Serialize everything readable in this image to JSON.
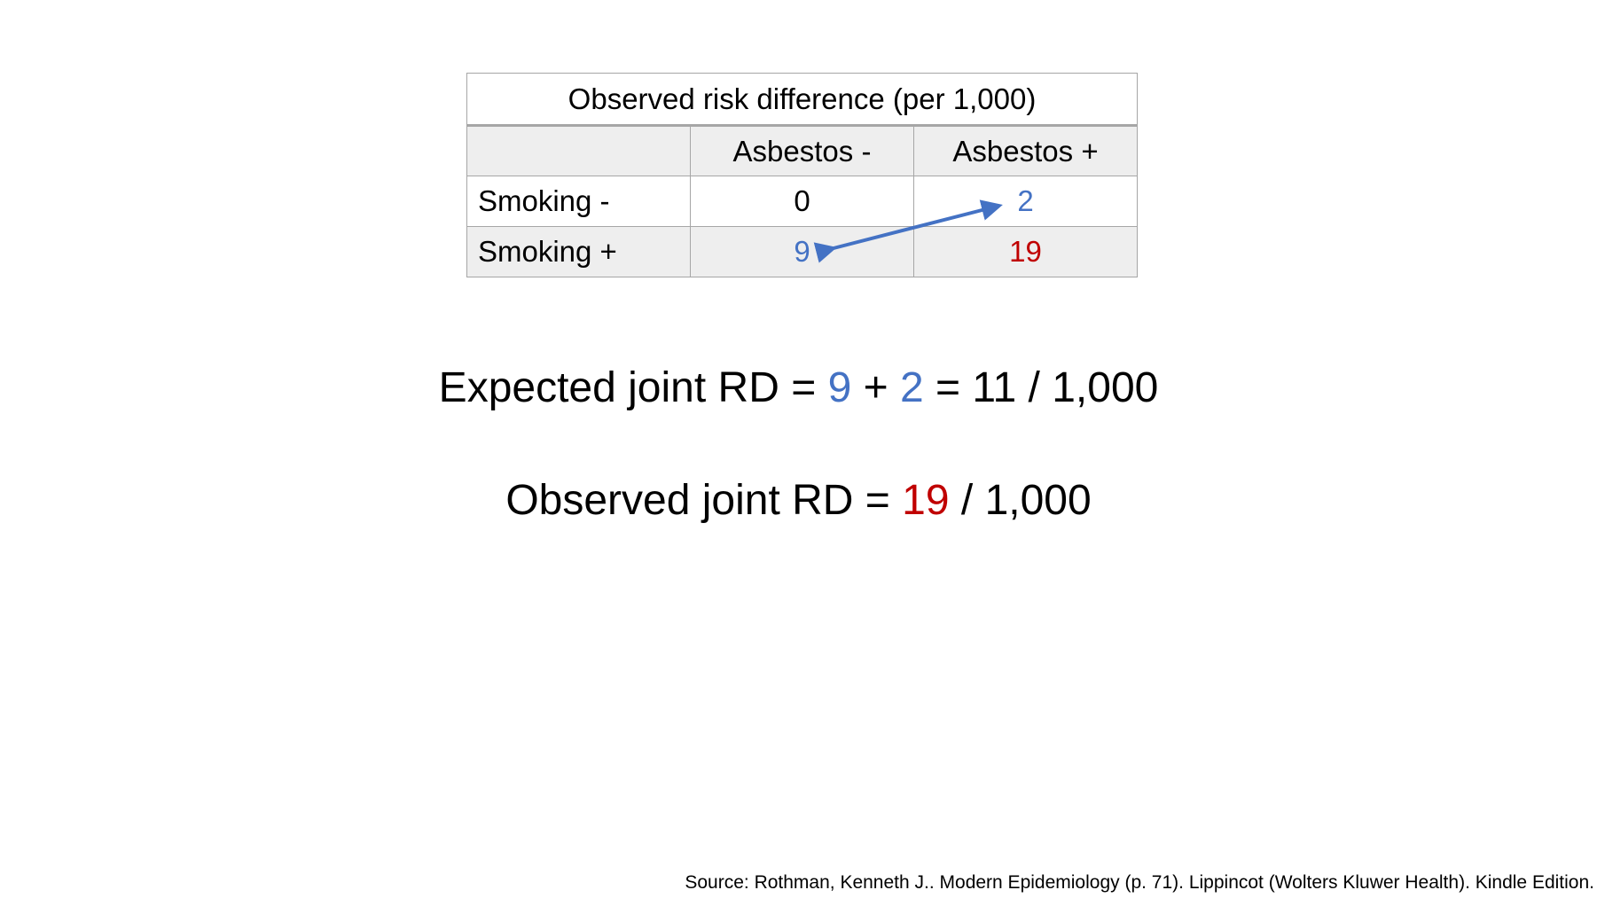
{
  "table": {
    "caption": "Observed risk difference (per 1,000)",
    "column_headers": [
      "",
      "Asbestos -",
      "Asbestos +"
    ],
    "rows": [
      {
        "label": "Smoking -",
        "values": [
          "0",
          "2"
        ]
      },
      {
        "label": "Smoking +",
        "values": [
          "9",
          "19"
        ]
      }
    ]
  },
  "equations": {
    "expected": {
      "prefix": "Expected joint RD = ",
      "term_a": "9",
      "plus": " + ",
      "term_b": "2",
      "suffix": " = 11 / 1,000"
    },
    "observed": {
      "prefix": "Observed joint RD = ",
      "term": "19",
      "suffix": " / 1,000"
    }
  },
  "source": "Source: Rothman, Kenneth J.. Modern Epidemiology (p. 71). Lippincot (Wolters Kluwer Health). Kindle Edition.",
  "colors": {
    "blue": "#4472c4",
    "red": "#c00000",
    "grid": "#a6a6a6",
    "shade": "#eeeeee"
  }
}
